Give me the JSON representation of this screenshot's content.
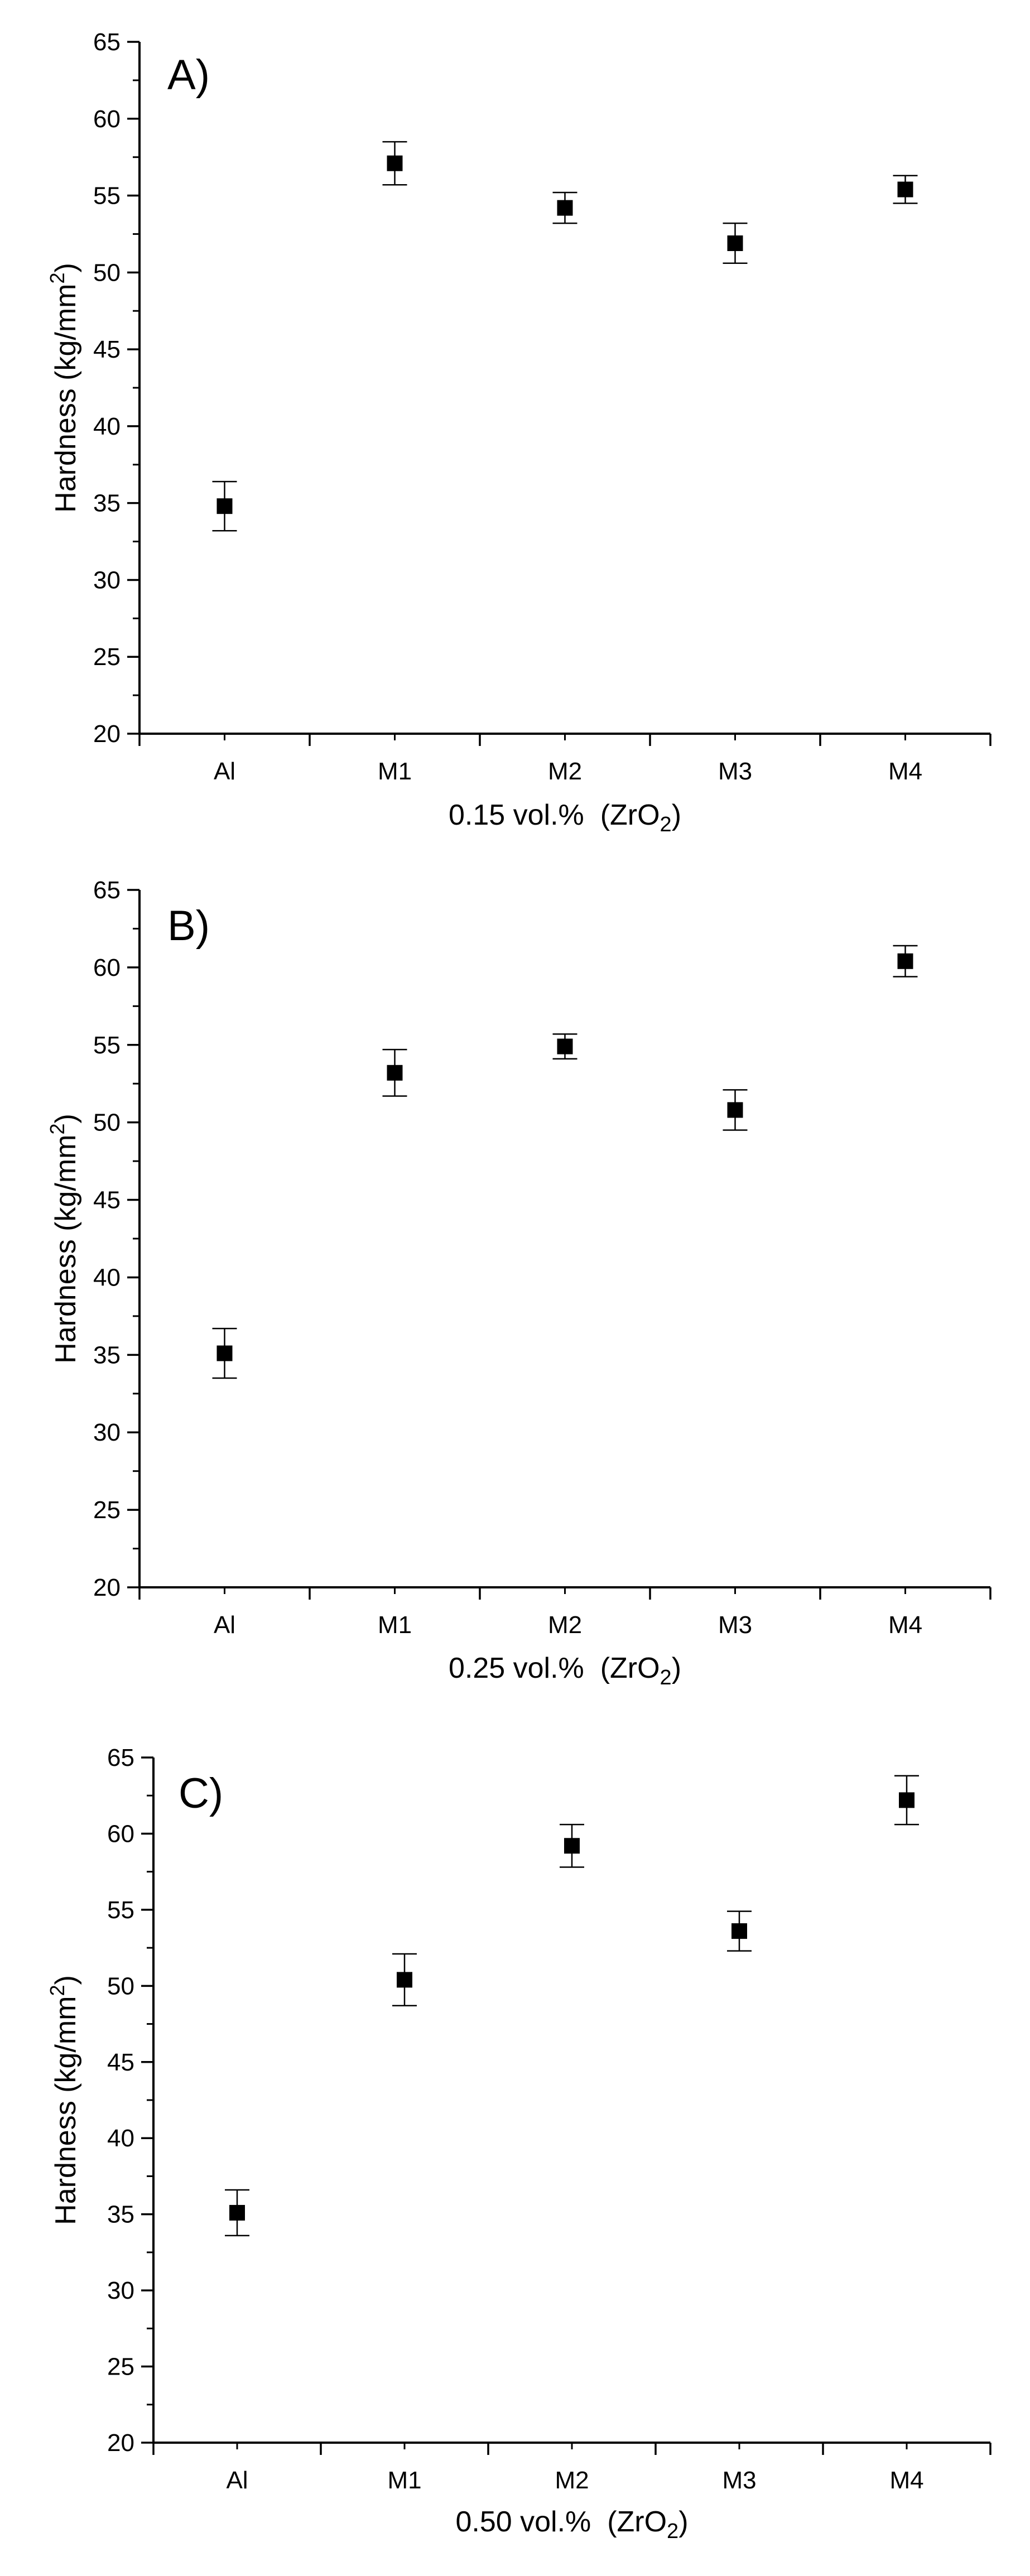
{
  "chart_data": [
    {
      "type": "scatter",
      "panel_label": "A)",
      "title": "",
      "xlabel_prefix": "0.15 vol.%",
      "xlabel_formula": "ZrO",
      "xlabel_formula_sub": "2",
      "xlabel": "0.15 vol.% (ZrO2)",
      "ylabel_main": "Hardness (kg/mm",
      "ylabel_sup": "2",
      "ylabel_close": ")",
      "ylabel": "Hardness (kg/mm2)",
      "categories": [
        "Al",
        "M1",
        "M2",
        "M3",
        "M4"
      ],
      "values": [
        34.8,
        57.1,
        54.2,
        51.9,
        55.4
      ],
      "errors": [
        1.6,
        1.4,
        1.0,
        1.3,
        0.9
      ],
      "ylim": [
        20,
        65
      ],
      "yticks": [
        20,
        25,
        30,
        35,
        40,
        45,
        50,
        55,
        60,
        65
      ],
      "grid": false
    },
    {
      "type": "scatter",
      "panel_label": "B)",
      "title": "",
      "xlabel_prefix": "0.25 vol.%",
      "xlabel_formula": "ZrO",
      "xlabel_formula_sub": "2",
      "xlabel": "0.25 vol.% (ZrO2)",
      "ylabel_main": "Hardness (kg/mm",
      "ylabel_sup": "2",
      "ylabel_close": ")",
      "ylabel": "Hardness (kg/mm2)",
      "categories": [
        "Al",
        "M1",
        "M2",
        "M3",
        "M4"
      ],
      "values": [
        35.1,
        53.2,
        54.9,
        50.8,
        60.4
      ],
      "errors": [
        1.6,
        1.5,
        0.8,
        1.3,
        1.0
      ],
      "ylim": [
        20,
        65
      ],
      "yticks": [
        20,
        25,
        30,
        35,
        40,
        45,
        50,
        55,
        60,
        65
      ],
      "grid": false
    },
    {
      "type": "scatter",
      "panel_label": "C)",
      "title": "",
      "xlabel_prefix": "0.50 vol.%",
      "xlabel_formula": "ZrO",
      "xlabel_formula_sub": "2",
      "xlabel": "0.50 vol.% (ZrO2)",
      "ylabel_main": "Hardness (kg/mm",
      "ylabel_sup": "2",
      "ylabel_close": ")",
      "ylabel": "Hardness (kg/mm2)",
      "categories": [
        "Al",
        "M1",
        "M2",
        "M3",
        "M4"
      ],
      "values": [
        35.1,
        50.4,
        59.2,
        53.6,
        62.2
      ],
      "errors": [
        1.5,
        1.7,
        1.4,
        1.3,
        1.6
      ],
      "ylim": [
        20,
        65
      ],
      "yticks": [
        20,
        25,
        30,
        35,
        40,
        45,
        50,
        55,
        60,
        65
      ],
      "grid": false
    }
  ]
}
